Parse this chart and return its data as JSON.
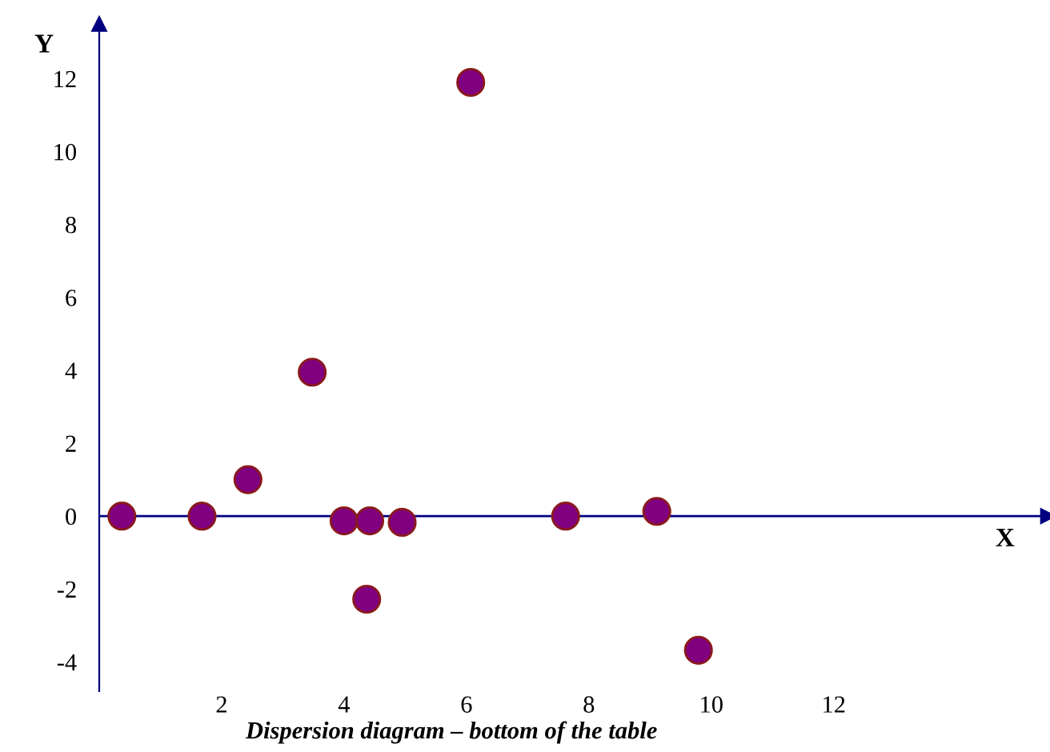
{
  "chart_data": {
    "type": "scatter",
    "title": "Dispersion diagram – bottom of the table",
    "xlabel": "X",
    "ylabel": "Y",
    "x": [
      0.37,
      1.68,
      2.43,
      3.48,
      4.0,
      4.42,
      4.37,
      4.95,
      6.07,
      7.62,
      9.11,
      9.79
    ],
    "series": [
      {
        "color": "#800080",
        "values": [
          0,
          0,
          1.0,
          3.95,
          -0.13,
          -0.13,
          -2.28,
          -0.17,
          11.9,
          0,
          0.13,
          -3.68
        ]
      }
    ],
    "xlim": [
      0,
      15.5
    ],
    "ylim": [
      -4.8,
      13.5
    ],
    "xticks": [
      2,
      4,
      6,
      8,
      10,
      12
    ],
    "yticks": [
      -4,
      -2,
      0,
      2,
      4,
      6,
      8,
      10,
      12
    ],
    "ref_lines": [
      {
        "axis": "y",
        "value": 0,
        "color": "#000080"
      }
    ],
    "grid": false,
    "legend": false,
    "marker": "circle"
  }
}
